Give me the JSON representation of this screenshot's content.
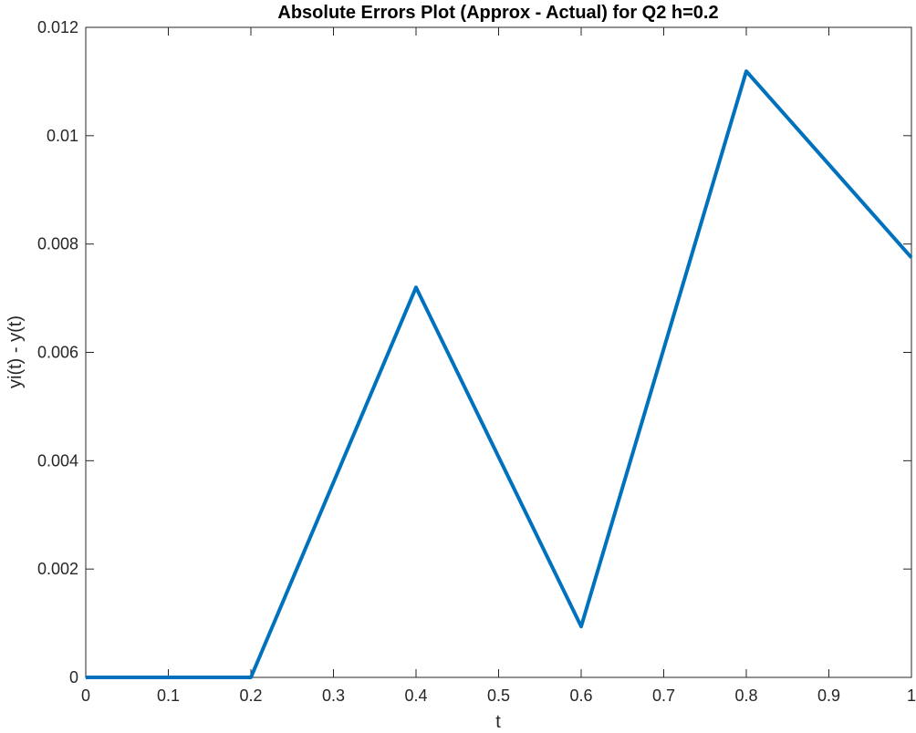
{
  "chart_data": {
    "type": "line",
    "title": "Absolute Errors Plot (Approx - Actual) for Q2 h=0.2",
    "xlabel": "t",
    "ylabel": "yi(t) - y(t)",
    "xlim": [
      0,
      1
    ],
    "ylim": [
      0,
      0.012
    ],
    "x_ticks": [
      "0",
      "0.1",
      "0.2",
      "0.3",
      "0.4",
      "0.5",
      "0.6",
      "0.7",
      "0.8",
      "0.9",
      "1"
    ],
    "y_ticks": [
      "0",
      "0.002",
      "0.004",
      "0.006",
      "0.008",
      "0.01",
      "0.012"
    ],
    "grid": false,
    "legend": "none",
    "series": [
      {
        "color": "#0072BD",
        "x": [
          0,
          0.2,
          0.4,
          0.6,
          0.8,
          1.0
        ],
        "y": [
          0,
          0,
          0.0072,
          0.00094,
          0.01119,
          0.00775
        ]
      }
    ]
  }
}
